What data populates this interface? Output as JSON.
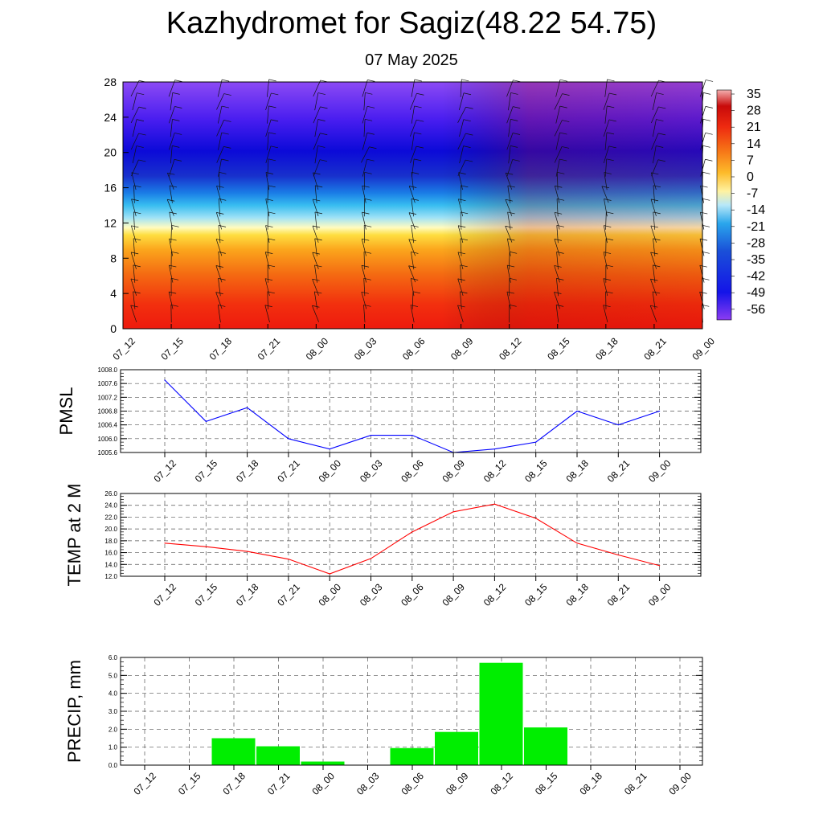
{
  "title": "Kazhydromet for Sagiz(48.22 54.75)",
  "subtitle": "07 May 2025",
  "time_labels": [
    "07_12",
    "07_15",
    "07_18",
    "07_21",
    "08_00",
    "08_03",
    "08_06",
    "08_09",
    "08_12",
    "08_15",
    "08_18",
    "08_21",
    "09_00"
  ],
  "chart_data": [
    {
      "type": "heatmap",
      "name": "cross-section",
      "x": [
        "07_12",
        "07_15",
        "07_18",
        "07_21",
        "08_00",
        "08_03",
        "08_06",
        "08_09",
        "08_12",
        "08_15",
        "08_18",
        "08_21",
        "09_00"
      ],
      "y_ticks": [
        0,
        4,
        8,
        12,
        16,
        20,
        24,
        28
      ],
      "ylim": [
        0,
        28
      ],
      "colorbar_labels": [
        "35",
        "28",
        "21",
        "14",
        "7",
        "0",
        "-7",
        "-14",
        "-21",
        "-28",
        "-35",
        "-42",
        "-49",
        "-56"
      ],
      "overlay": "wind barbs",
      "grid": false
    },
    {
      "type": "line",
      "ylabel": "PMSL",
      "categories": [
        "07_12",
        "07_15",
        "07_18",
        "07_21",
        "08_00",
        "08_03",
        "08_06",
        "08_09",
        "08_12",
        "08_15",
        "08_18",
        "08_21",
        "09_00"
      ],
      "values": [
        1007.7,
        1006.5,
        1006.9,
        1006.0,
        1005.7,
        1006.1,
        1006.1,
        1005.6,
        1005.7,
        1005.9,
        1006.8,
        1006.4,
        1006.8
      ],
      "ylim": [
        1005.6,
        1008.0
      ],
      "y_ticks": [
        "1005.6",
        "1006.0",
        "1006.4",
        "1006.8",
        "1007.2",
        "1007.6",
        "1008.0"
      ],
      "color": "#0000ff",
      "grid": true
    },
    {
      "type": "line",
      "ylabel": "TEMP at 2 M",
      "categories": [
        "07_12",
        "07_15",
        "07_18",
        "07_21",
        "08_00",
        "08_03",
        "08_06",
        "08_09",
        "08_12",
        "08_15",
        "08_18",
        "08_21",
        "09_00"
      ],
      "values": [
        17.6,
        17.0,
        16.2,
        14.9,
        12.4,
        15.0,
        19.5,
        22.9,
        24.2,
        21.8,
        17.6,
        15.6,
        13.8
      ],
      "ylim": [
        12.0,
        26.0
      ],
      "y_ticks": [
        "12.0",
        "14.0",
        "16.0",
        "18.0",
        "20.0",
        "22.0",
        "24.0",
        "26.0"
      ],
      "color": "#ff0000",
      "grid": true
    },
    {
      "type": "bar",
      "ylabel": "PRECIP, mm",
      "categories": [
        "07_12",
        "07_15",
        "07_18",
        "07_21",
        "08_00",
        "08_03",
        "08_06",
        "08_09",
        "08_12",
        "08_15",
        "08_18",
        "08_21",
        "09_00"
      ],
      "values": [
        0,
        1.5,
        1.05,
        0.2,
        0,
        0.95,
        1.85,
        5.7,
        2.1,
        0,
        0,
        0,
        0
      ],
      "ylim": [
        0,
        6.0
      ],
      "y_ticks": [
        "0.0",
        "1.0",
        "2.0",
        "3.0",
        "4.0",
        "5.0",
        "6.0"
      ],
      "color": "#00ee00",
      "grid": true
    }
  ]
}
